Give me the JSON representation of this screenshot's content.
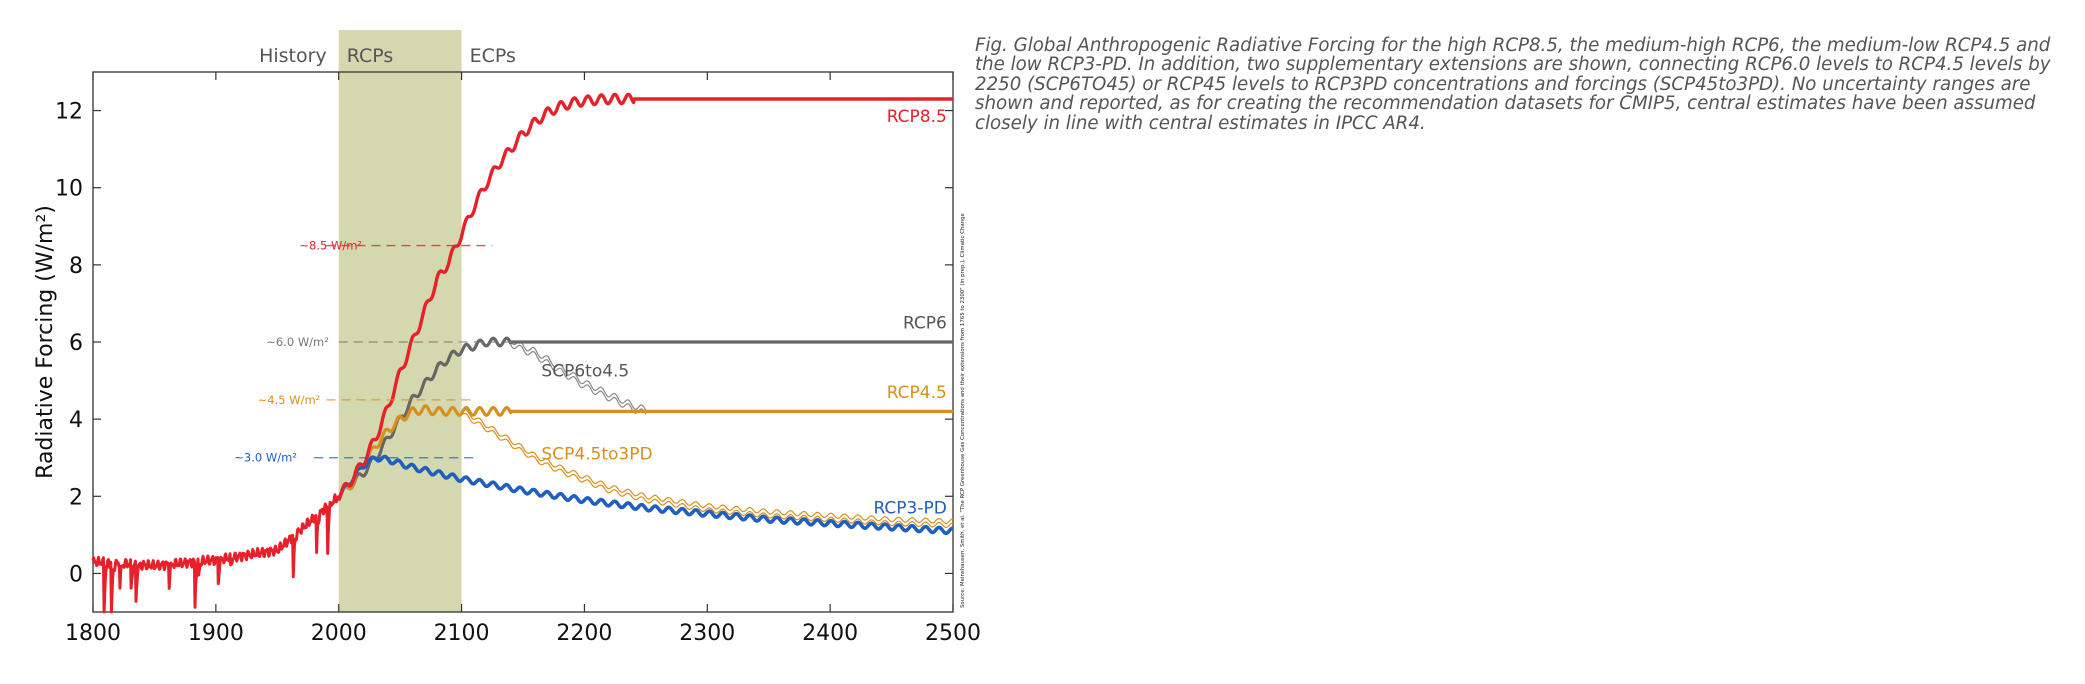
{
  "caption": "Fig. Global Anthropogenic Radiative Forcing for the high RCP8.5, the medium-high RCP6, the medium-low RCP4.5 and the low RCP3-PD. In addition, two supplementary extensions are shown, connecting RCP6.0 levels to RCP4.5 levels by 2250 (SCP6TO45) or RCP45 levels to RCP3PD concentrations and forcings (SCP45to3PD). No uncertainty ranges are shown and reported, as for creating the recommendation datasets for CMIP5, central estimates have been assumed closely in line with central estimates in IPCC AR4.",
  "chart_data": {
    "type": "line",
    "ylabel": "Radiative Forcing (W/m²)",
    "xlim": [
      1800,
      2500
    ],
    "ylim": [
      -1,
      13
    ],
    "x_ticks": [
      "1800",
      "1900",
      "2000",
      "2100",
      "2200",
      "2300",
      "2400",
      "2500"
    ],
    "y_ticks": [
      "0",
      "2",
      "4",
      "6",
      "8",
      "10",
      "12"
    ],
    "grid": false,
    "regions": [
      {
        "name": "History",
        "x": [
          1800,
          2000
        ]
      },
      {
        "name": "RCPs",
        "x": [
          2000,
          2100
        ],
        "color": "#d3d8ae"
      },
      {
        "name": "ECPs",
        "x": [
          2100,
          2500
        ]
      }
    ],
    "levels": [
      {
        "label": "~8.5 W/m²",
        "y": 8.5,
        "color": "#e8202a"
      },
      {
        "label": "~6.0 W/m²",
        "y": 6.0,
        "color": "#777777"
      },
      {
        "label": "~4.5 W/m²",
        "y": 4.5,
        "color": "#d98f1c"
      },
      {
        "label": "~3.0 W/m²",
        "y": 3.0,
        "color": "#1e5fbf"
      }
    ],
    "series": [
      {
        "name": "RCP8.5",
        "color": "#e8202a",
        "x": [
          1800,
          1850,
          1900,
          1950,
          2000,
          2010,
          2020,
          2030,
          2040,
          2050,
          2060,
          2070,
          2080,
          2090,
          2100,
          2110,
          2120,
          2130,
          2140,
          2150,
          2160,
          2170,
          2180,
          2190,
          2200,
          2210,
          2220,
          2230,
          2240,
          2250,
          2300,
          2400,
          2500
        ],
        "y": [
          0.3,
          0.2,
          0.35,
          0.6,
          2.0,
          2.4,
          2.9,
          3.5,
          4.3,
          5.2,
          6.0,
          6.8,
          7.6,
          8.1,
          8.8,
          9.5,
          10.1,
          10.6,
          11.0,
          11.4,
          11.7,
          11.95,
          12.1,
          12.2,
          12.25,
          12.28,
          12.3,
          12.3,
          12.3,
          12.3,
          12.3,
          12.3,
          12.3
        ]
      },
      {
        "name": "RCP6",
        "color": "#666666",
        "x": [
          2000,
          2010,
          2020,
          2030,
          2040,
          2050,
          2060,
          2070,
          2080,
          2090,
          2100,
          2110,
          2120,
          2130,
          2140,
          2150,
          2200,
          2300,
          2400,
          2500
        ],
        "y": [
          2.0,
          2.3,
          2.6,
          3.0,
          3.5,
          4.0,
          4.5,
          4.9,
          5.3,
          5.6,
          5.8,
          5.9,
          6.0,
          6.0,
          6.0,
          6.0,
          6.0,
          6.0,
          6.0,
          6.0
        ]
      },
      {
        "name": "SCP6to4.5",
        "color": "#888888",
        "x": [
          2140,
          2160,
          2180,
          2200,
          2220,
          2240,
          2250
        ],
        "y": [
          6.0,
          5.7,
          5.3,
          4.9,
          4.6,
          4.3,
          4.2
        ]
      },
      {
        "name": "RCP4.5",
        "color": "#d98f1c",
        "x": [
          2000,
          2010,
          2020,
          2030,
          2040,
          2050,
          2060,
          2070,
          2080,
          2090,
          2100,
          2150,
          2200,
          2300,
          2400,
          2500
        ],
        "y": [
          2.0,
          2.3,
          2.8,
          3.3,
          3.7,
          4.0,
          4.2,
          4.25,
          4.2,
          4.2,
          4.2,
          4.2,
          4.2,
          4.2,
          4.2,
          4.2
        ]
      },
      {
        "name": "SCP4.5to3PD",
        "color": "#d98f1c",
        "x": [
          2100,
          2120,
          2140,
          2160,
          2180,
          2200,
          2220,
          2250,
          2300,
          2350,
          2400,
          2450,
          2500
        ],
        "y": [
          4.2,
          3.8,
          3.4,
          3.0,
          2.7,
          2.45,
          2.2,
          1.95,
          1.7,
          1.55,
          1.45,
          1.35,
          1.3
        ]
      },
      {
        "name": "RCP3-PD",
        "color": "#1e5fbf",
        "x": [
          2000,
          2010,
          2020,
          2030,
          2040,
          2060,
          2080,
          2100,
          2150,
          2200,
          2250,
          2300,
          2350,
          2400,
          2450,
          2500
        ],
        "y": [
          2.0,
          2.4,
          2.8,
          3.0,
          2.95,
          2.75,
          2.6,
          2.45,
          2.15,
          1.9,
          1.7,
          1.55,
          1.4,
          1.3,
          1.2,
          1.1
        ]
      }
    ],
    "series_labels": [
      {
        "text": "RCP8.5",
        "color": "#e8202a"
      },
      {
        "text": "RCP6",
        "color": "#555555"
      },
      {
        "text": "SCP6to4.5",
        "color": "#555555"
      },
      {
        "text": "RCP4.5",
        "color": "#d98f1c"
      },
      {
        "text": "SCP4.5to3PD",
        "color": "#d98f1c"
      },
      {
        "text": "RCP3-PD",
        "color": "#1e5fbf"
      }
    ],
    "side_note": "Source: Meinshausen, Smith, et al. \"The RCP Greenhouse Gas Concentrations and their extensions from 1765 to 2300\" (in prep.), Climatic Change"
  }
}
